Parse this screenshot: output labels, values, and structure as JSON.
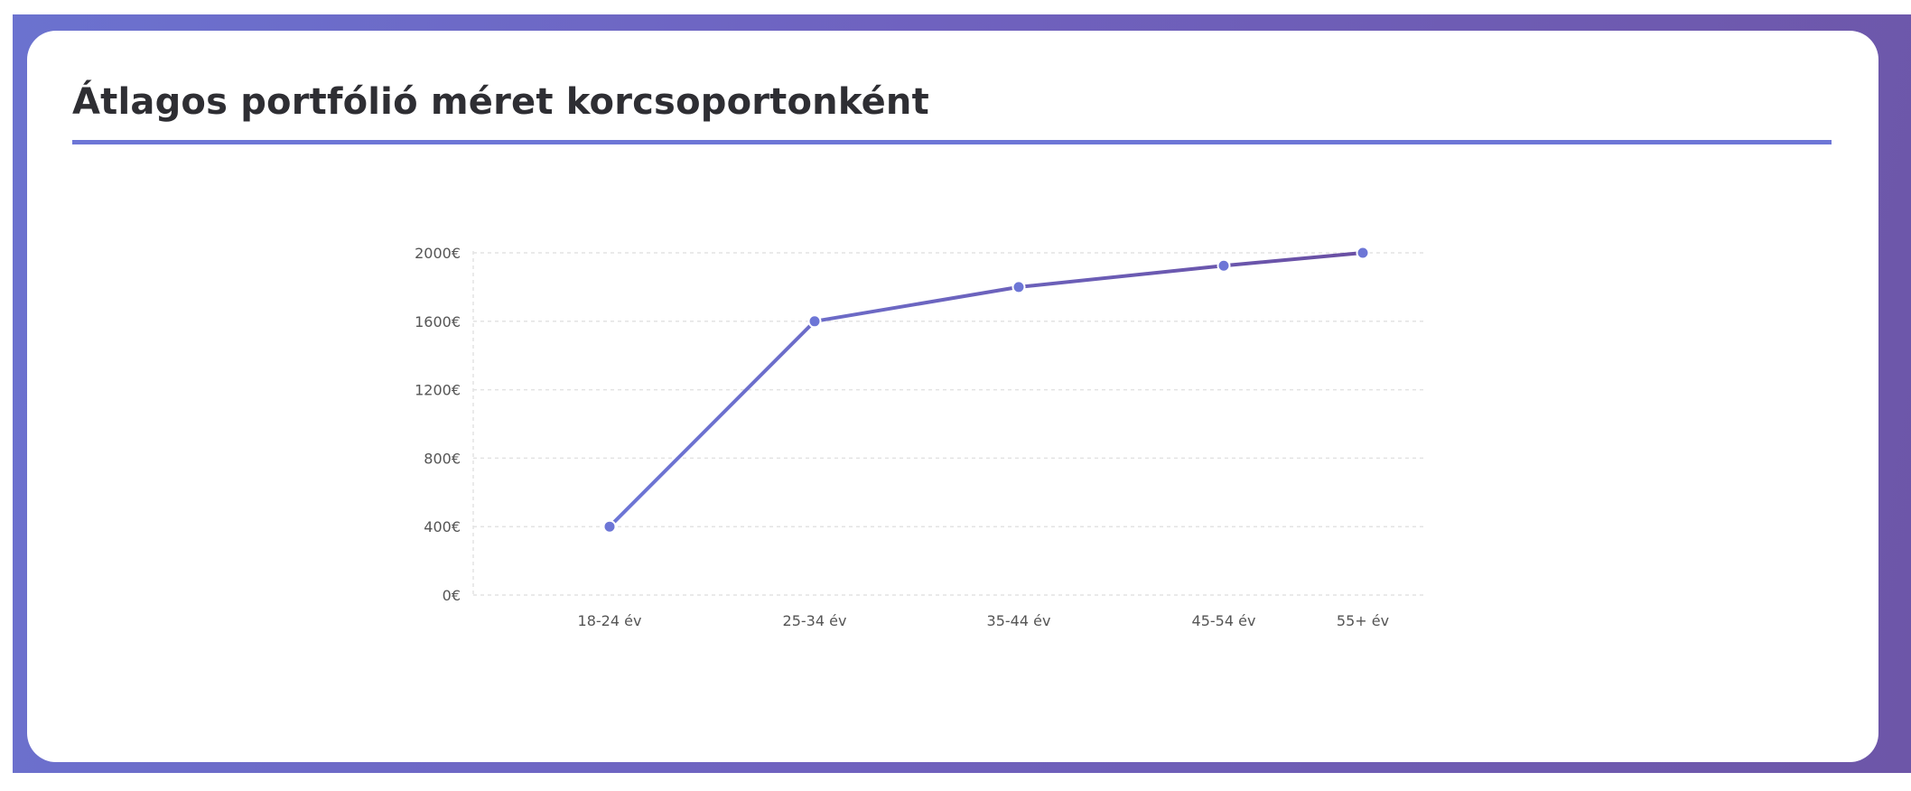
{
  "card": {
    "title": "Átlagos portfólió méret korcsoportonként"
  },
  "colors": {
    "background_gradient_start": "#6b72cf",
    "background_gradient_end": "#6d56a8",
    "accent_rule": "#6d76d6",
    "line_start": "#6d76d6",
    "line_end": "#6a4fa3",
    "point": "#6d76d6",
    "grid": "#e3e3e3"
  },
  "chart_data": {
    "type": "line",
    "title": "",
    "xlabel": "",
    "ylabel": "",
    "categories": [
      "18-24 év",
      "25-34 év",
      "35-44 év",
      "45-54 év",
      "55+ év"
    ],
    "values": [
      400,
      1600,
      1800,
      1925,
      2000
    ],
    "y_ticks": [
      "0€",
      "400€",
      "800€",
      "1200€",
      "1600€",
      "2000€"
    ],
    "ylim": [
      0,
      2000
    ],
    "grid": true,
    "legend": "none"
  }
}
